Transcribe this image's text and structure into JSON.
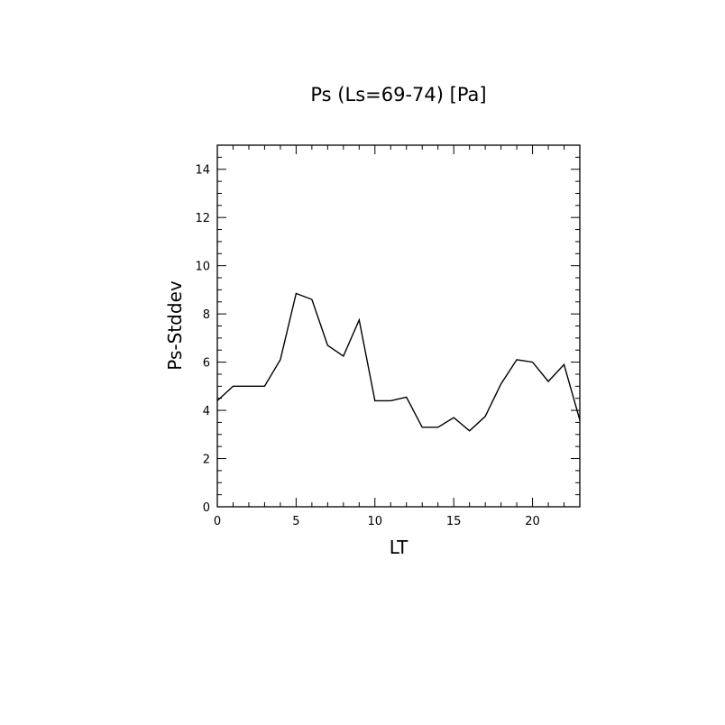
{
  "chart_data": {
    "type": "line",
    "title": "Ps (Ls=69-74) [Pa]",
    "xlabel": "LT",
    "ylabel": "Ps-Stddev",
    "xlim": [
      0,
      23
    ],
    "ylim": [
      0,
      15
    ],
    "xticks": [
      0,
      5,
      10,
      15,
      20
    ],
    "xtick_labels": [
      "0",
      "5",
      "10",
      "15",
      "20"
    ],
    "xminor_step": 1,
    "yticks": [
      0,
      2,
      4,
      6,
      8,
      10,
      12,
      14
    ],
    "ytick_labels": [
      "0",
      "2",
      "4",
      "6",
      "8",
      "10",
      "12",
      "14"
    ],
    "yminor_step": 0.5,
    "grid": false,
    "series": [
      {
        "x": [
          0,
          1,
          2,
          3,
          4,
          5,
          6,
          7,
          8,
          9,
          10,
          11,
          12,
          13,
          14,
          15,
          16,
          17,
          18,
          19,
          20,
          21,
          22,
          23
        ],
        "values": [
          4.4,
          5.0,
          5.0,
          5.0,
          6.1,
          8.85,
          8.6,
          6.7,
          6.25,
          7.75,
          4.4,
          4.4,
          4.55,
          3.3,
          3.3,
          3.7,
          3.15,
          3.75,
          5.1,
          6.1,
          6.0,
          5.2,
          5.9,
          3.6
        ]
      }
    ],
    "color": "#000000"
  }
}
